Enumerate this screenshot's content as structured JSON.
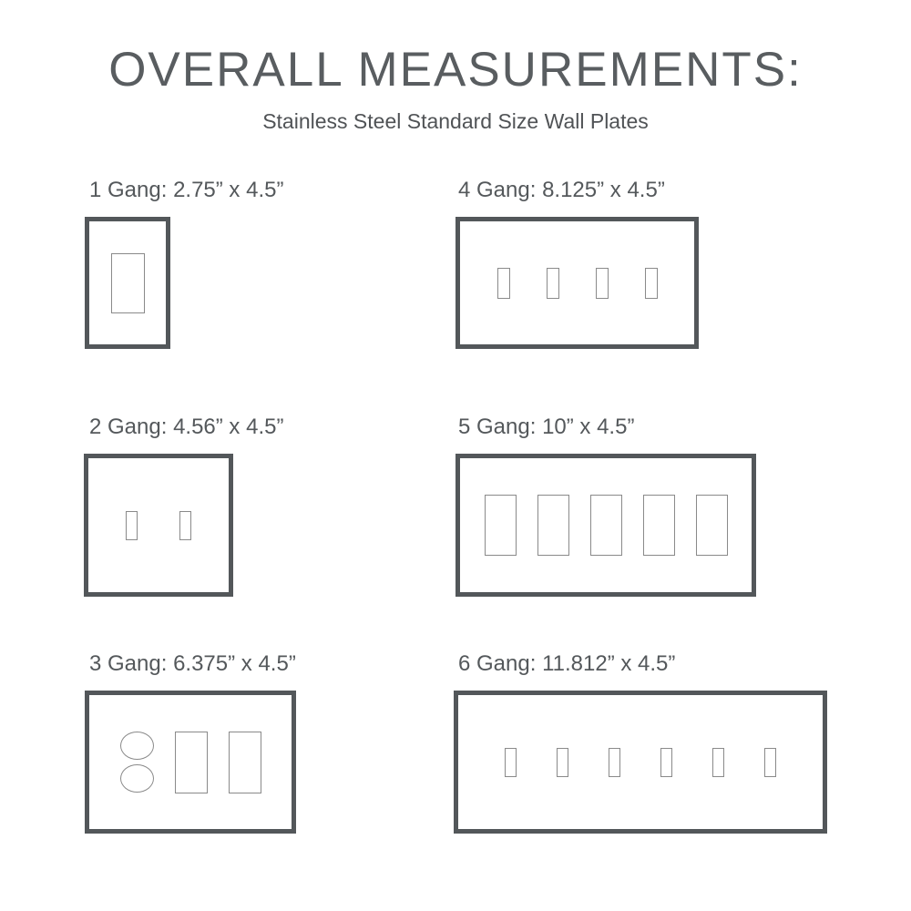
{
  "page": {
    "title": "OVERALL MEASUREMENTS:",
    "subtitle": "Stainless Steel Standard Size Wall Plates"
  },
  "colors": {
    "background": "#ffffff",
    "title_text": "#595d60",
    "subtitle_text": "#505356",
    "label_text": "#54585b",
    "plate_border": "#53575a",
    "opening_outline": "#8a8a8a"
  },
  "plates": [
    {
      "name": "1-gang",
      "label": "1 Gang: 2.75” x 4.5”",
      "gangs": 1,
      "width_in": 2.75,
      "height_in": 4.5,
      "openings": [
        "rocker"
      ]
    },
    {
      "name": "4-gang",
      "label": "4 Gang: 8.125” x 4.5”",
      "gangs": 4,
      "width_in": 8.125,
      "height_in": 4.5,
      "openings": [
        "toggle",
        "toggle",
        "toggle",
        "toggle"
      ]
    },
    {
      "name": "2-gang",
      "label": "2 Gang: 4.56” x 4.5”",
      "gangs": 2,
      "width_in": 4.56,
      "height_in": 4.5,
      "openings": [
        "toggle",
        "toggle"
      ]
    },
    {
      "name": "5-gang",
      "label": "5 Gang: 10” x 4.5”",
      "gangs": 5,
      "width_in": 10,
      "height_in": 4.5,
      "openings": [
        "rocker",
        "rocker",
        "rocker",
        "rocker",
        "rocker"
      ]
    },
    {
      "name": "3-gang",
      "label": "3 Gang: 6.375” x 4.5”",
      "gangs": 3,
      "width_in": 6.375,
      "height_in": 4.5,
      "openings": [
        "duplex-outlet",
        "rocker",
        "rocker"
      ]
    },
    {
      "name": "6-gang",
      "label": "6 Gang: 11.812” x 4.5”",
      "gangs": 6,
      "width_in": 11.812,
      "height_in": 4.5,
      "openings": [
        "toggle",
        "toggle",
        "toggle",
        "toggle",
        "toggle",
        "toggle"
      ]
    }
  ]
}
